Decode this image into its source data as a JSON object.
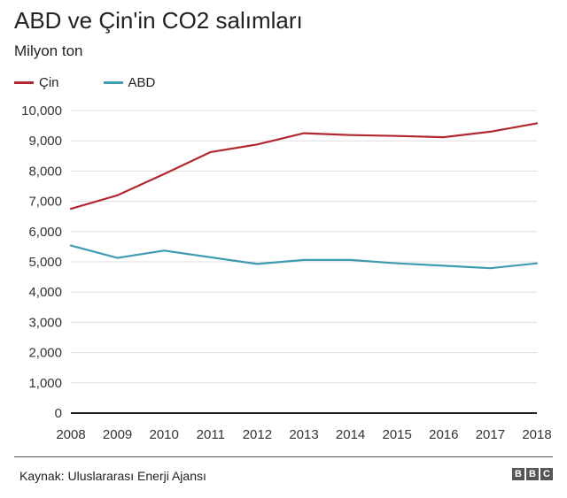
{
  "header": {
    "title": "ABD ve Çin'in CO2 salımları",
    "subtitle": "Milyon ton"
  },
  "footer": {
    "source": "Kaynak: Uluslararası Enerji Ajansı",
    "logo_letters": [
      "B",
      "B",
      "C"
    ]
  },
  "chart_data": {
    "type": "line",
    "title": "ABD ve Çin'in CO2 salımları",
    "subtitle": "Milyon ton",
    "x": [
      2008,
      2009,
      2010,
      2011,
      2012,
      2013,
      2014,
      2015,
      2016,
      2017,
      2018
    ],
    "x_tick_labels": [
      "2008",
      "2009",
      "2010",
      "2011",
      "2012",
      "2013",
      "2014",
      "2015",
      "2016",
      "2017",
      "2018"
    ],
    "y_tick_labels": [
      "10,000",
      "9,000",
      "8,000",
      "7,000",
      "6,000",
      "5,000",
      "4,000",
      "3,000",
      "2,000",
      "1,000",
      "0"
    ],
    "y_ticks": [
      10000,
      9000,
      8000,
      7000,
      6000,
      5000,
      4000,
      3000,
      2000,
      1000,
      0
    ],
    "ylim": [
      0,
      10000
    ],
    "grid": true,
    "legend_position": "top-left",
    "series": [
      {
        "name": "Çin",
        "color": "#b1282d",
        "values": [
          6750,
          7200,
          7900,
          8630,
          8880,
          9250,
          9190,
          9160,
          9120,
          9300,
          9580
        ]
      },
      {
        "name": "ABD",
        "color": "#3e9bb1",
        "values": [
          5540,
          5130,
          5370,
          5150,
          4930,
          5060,
          5060,
          4950,
          4870,
          4790,
          4950
        ]
      }
    ]
  }
}
